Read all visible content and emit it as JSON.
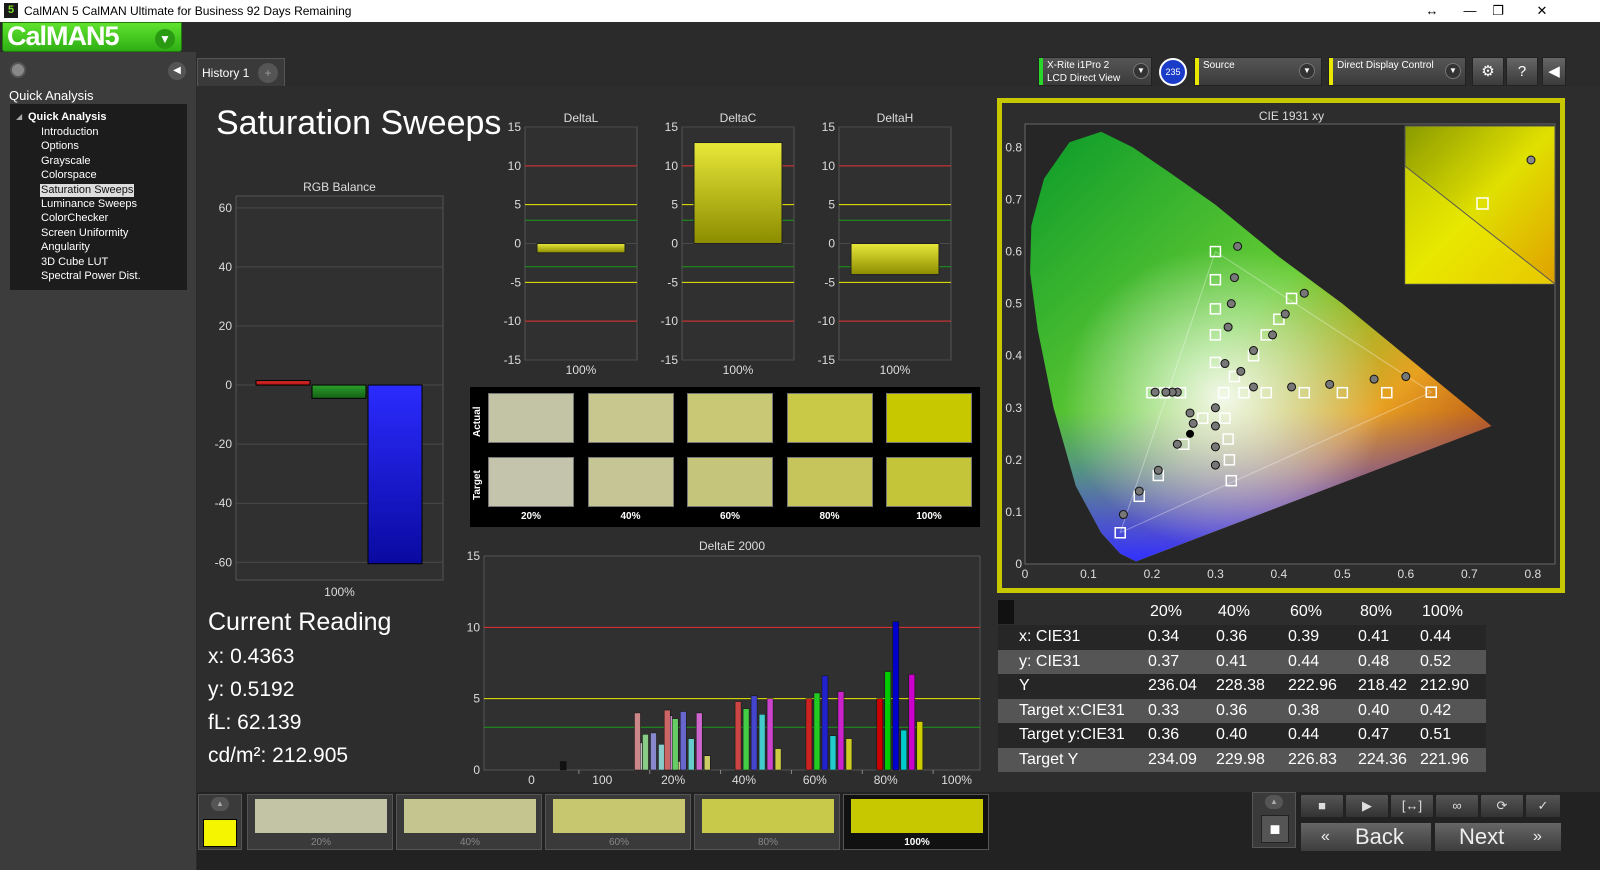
{
  "window": {
    "title": "CalMAN 5 CalMAN Ultimate for Business 92 Days Remaining",
    "app_icon": "5"
  },
  "logo": {
    "text": "CalMAN5"
  },
  "sidebar": {
    "heading": "Quick Analysis",
    "root": "Quick Analysis",
    "items": [
      "Introduction",
      "Options",
      "Grayscale",
      "Colorspace",
      "Saturation Sweeps",
      "Luminance Sweeps",
      "ColorChecker",
      "Screen Uniformity",
      "Angularity",
      "3D Cube LUT",
      "Spectral Power Dist."
    ],
    "selected": "Saturation Sweeps"
  },
  "tabs": [
    {
      "label": "History 1"
    }
  ],
  "controls": {
    "meter_line1": "X-Rite i1Pro 2",
    "meter_line2": "LCD Direct View",
    "meter_badge": "235",
    "source": "Source",
    "display": "Direct Display Control",
    "meter_color": "#2bd62b",
    "source_color": "#e8e800",
    "display_color": "#e8e800"
  },
  "page_title": "Saturation Sweeps",
  "colors": {
    "accent": "#c8c800",
    "red": "#e03030",
    "yellow": "#e8e800",
    "green": "#1a9a1a"
  },
  "rgb_balance": {
    "title": "RGB Balance",
    "category": "100%",
    "ylim": [
      -60,
      60
    ],
    "yticks": [
      "60",
      "40",
      "20",
      "0",
      "-20",
      "-40",
      "-60"
    ],
    "values": {
      "red": 1.5,
      "green": -4.5,
      "blue": -60.5
    }
  },
  "delta_charts": [
    {
      "title": "DeltaL",
      "category": "100%",
      "value": -1.2
    },
    {
      "title": "DeltaC",
      "category": "100%",
      "value": 13.0
    },
    {
      "title": "DeltaH",
      "category": "100%",
      "value": -4.0
    }
  ],
  "delta_yticks": [
    "15",
    "10",
    "5",
    "0",
    "-5",
    "-10",
    "-15"
  ],
  "swatches": {
    "row_actual": "Actual",
    "row_target": "Target",
    "labels": [
      "20%",
      "40%",
      "60%",
      "80%",
      "100%"
    ],
    "actual_colors": [
      "#c3c3a5",
      "#c8c88e",
      "#c9c975",
      "#c9c947",
      "#c8c800"
    ],
    "target_colors": [
      "#c4c4ad",
      "#c5c596",
      "#c5c57b",
      "#c5c55c",
      "#c5c53a"
    ]
  },
  "deltaE": {
    "title": "DeltaE 2000",
    "ylim": [
      0,
      15
    ],
    "yticks": [
      "15",
      "10",
      "5",
      "0"
    ],
    "xlabels": [
      "0",
      "100",
      "20%",
      "40%",
      "60%",
      "80%",
      "100%"
    ]
  },
  "cie": {
    "title": "CIE 1931 xy",
    "xticks": [
      "0",
      "0.1",
      "0.2",
      "0.3",
      "0.4",
      "0.5",
      "0.6",
      "0.7",
      "0.8"
    ],
    "yticks": [
      "0.8",
      "0.7",
      "0.6",
      "0.5",
      "0.4",
      "0.3",
      "0.2",
      "0.1",
      "0"
    ]
  },
  "current_reading": {
    "title": "Current Reading",
    "x": "x: 0.4363",
    "y": "y: 0.5192",
    "fL": "fL: 62.139",
    "cd": "cd/m²: 212.905"
  },
  "table": {
    "headers": [
      "20%",
      "40%",
      "60%",
      "80%",
      "100%"
    ],
    "rows": [
      {
        "label": "x: CIE31",
        "values": [
          "0.34",
          "0.36",
          "0.39",
          "0.41",
          "0.44"
        ]
      },
      {
        "label": "y: CIE31",
        "values": [
          "0.37",
          "0.41",
          "0.44",
          "0.48",
          "0.52"
        ]
      },
      {
        "label": "Y",
        "values": [
          "236.04",
          "228.38",
          "222.96",
          "218.42",
          "212.90"
        ]
      },
      {
        "label": "Target x:CIE31",
        "values": [
          "0.33",
          "0.36",
          "0.38",
          "0.40",
          "0.42"
        ]
      },
      {
        "label": "Target y:CIE31",
        "values": [
          "0.36",
          "0.40",
          "0.44",
          "0.47",
          "0.51"
        ]
      },
      {
        "label": "Target Y",
        "values": [
          "234.09",
          "229.98",
          "226.83",
          "224.36",
          "221.96"
        ]
      }
    ]
  },
  "bottom": {
    "current_color": "#f5f500",
    "swatches": [
      {
        "label": "20%",
        "color": "#c3c3a5"
      },
      {
        "label": "40%",
        "color": "#c5c58f"
      },
      {
        "label": "60%",
        "color": "#c7c770"
      },
      {
        "label": "80%",
        "color": "#c8c84a"
      },
      {
        "label": "100%",
        "color": "#c8c800"
      }
    ],
    "selected": "100%",
    "back": "Back",
    "next": "Next"
  }
}
